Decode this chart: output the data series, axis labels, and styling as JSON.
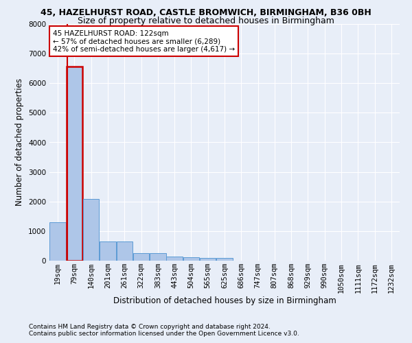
{
  "title1": "45, HAZELHURST ROAD, CASTLE BROMWICH, BIRMINGHAM, B36 0BH",
  "title2": "Size of property relative to detached houses in Birmingham",
  "xlabel": "Distribution of detached houses by size in Birmingham",
  "ylabel": "Number of detached properties",
  "footnote1": "Contains HM Land Registry data © Crown copyright and database right 2024.",
  "footnote2": "Contains public sector information licensed under the Open Government Licence v3.0.",
  "bin_labels": [
    "19sqm",
    "79sqm",
    "140sqm",
    "201sqm",
    "261sqm",
    "322sqm",
    "383sqm",
    "443sqm",
    "504sqm",
    "565sqm",
    "625sqm",
    "686sqm",
    "747sqm",
    "807sqm",
    "868sqm",
    "929sqm",
    "990sqm",
    "1050sqm",
    "1111sqm",
    "1172sqm",
    "1232sqm"
  ],
  "bar_heights": [
    1300,
    6570,
    2080,
    660,
    640,
    255,
    245,
    130,
    125,
    90,
    85,
    0,
    0,
    0,
    0,
    0,
    0,
    0,
    0,
    0,
    0
  ],
  "bar_color": "#aec6e8",
  "bar_edgecolor": "#5b9bd5",
  "highlight_bar_index": 1,
  "highlight_color": "#cc0000",
  "property_bar_index": 1,
  "annotation_text_line1": "45 HAZELHURST ROAD: 122sqm",
  "annotation_text_line2": "← 57% of detached houses are smaller (6,289)",
  "annotation_text_line3": "42% of semi-detached houses are larger (4,617) →",
  "annotation_box_color": "#cc0000",
  "ylim": [
    0,
    8000
  ],
  "yticks": [
    0,
    1000,
    2000,
    3000,
    4000,
    5000,
    6000,
    7000,
    8000
  ],
  "bg_color": "#e8eef8",
  "plot_bg_color": "#e8eef8",
  "grid_color": "#ffffff",
  "title1_fontsize": 9,
  "title2_fontsize": 9,
  "xlabel_fontsize": 8.5,
  "ylabel_fontsize": 8.5,
  "footnote_fontsize": 6.5,
  "tick_fontsize": 7.5,
  "annot_fontsize": 7.5
}
